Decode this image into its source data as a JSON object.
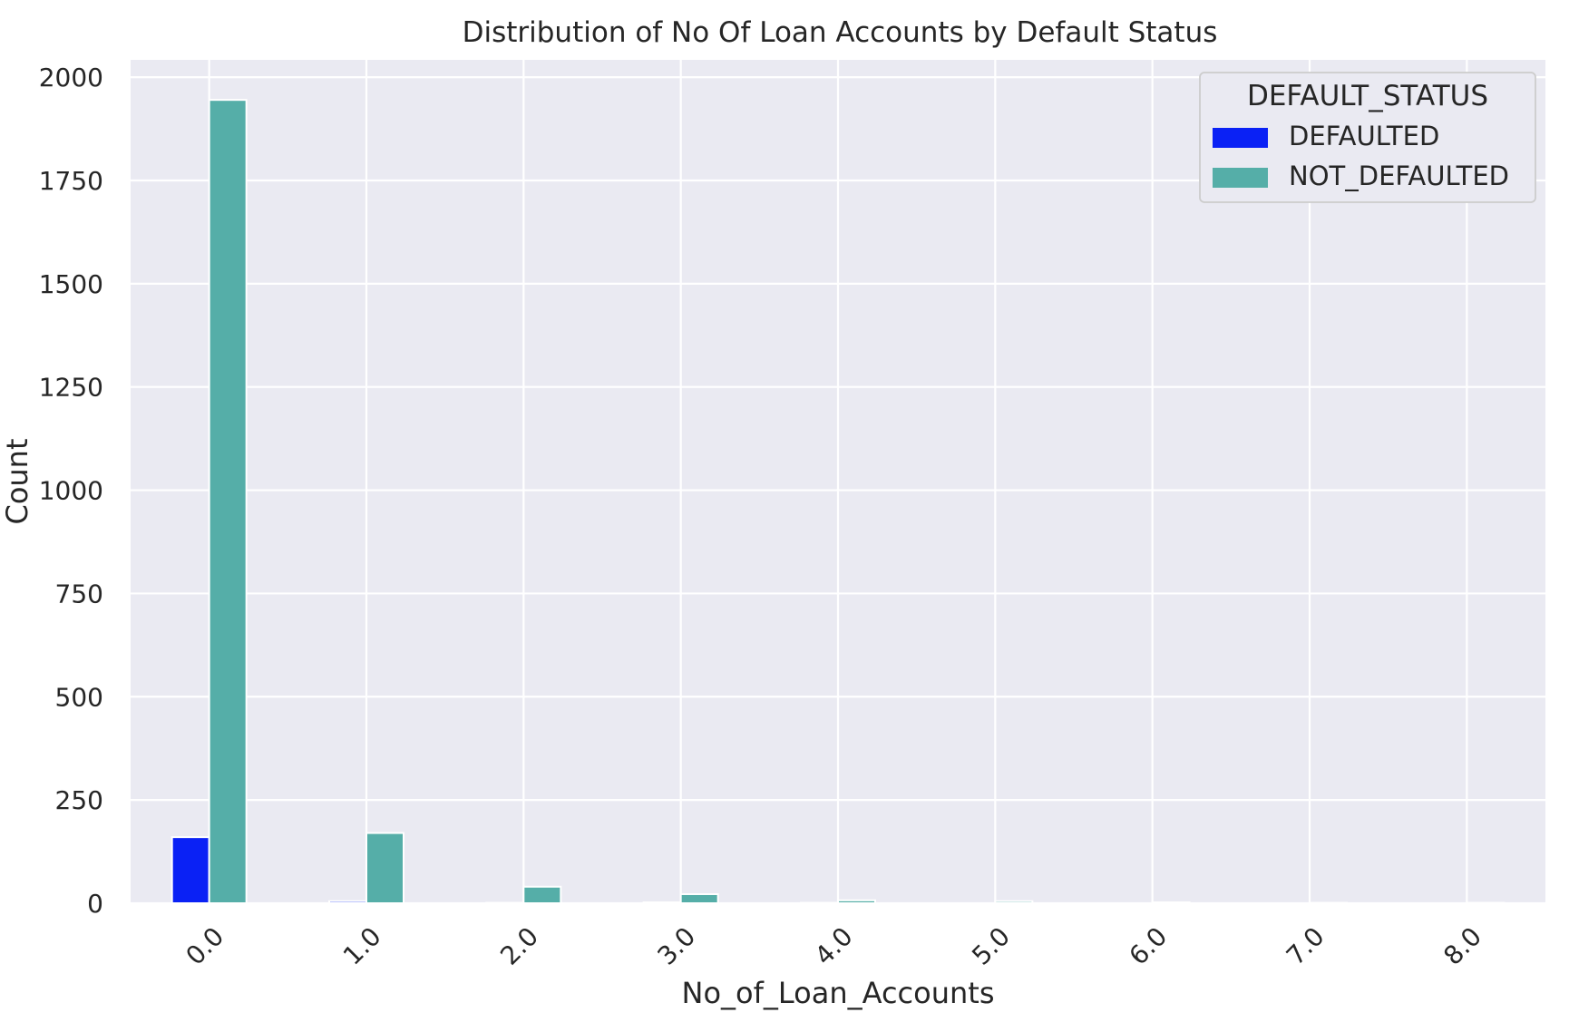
{
  "chart_data": {
    "type": "bar",
    "title": "Distribution of No Of Loan Accounts by Default Status",
    "xlabel": "No_of_Loan_Accounts",
    "ylabel": "Count",
    "categories": [
      "0.0",
      "1.0",
      "2.0",
      "3.0",
      "4.0",
      "5.0",
      "6.0",
      "7.0",
      "8.0"
    ],
    "series": [
      {
        "name": "DEFAULTED",
        "color": "#0a21f5",
        "values": [
          160,
          5,
          1,
          2,
          1,
          0,
          0,
          0,
          0
        ]
      },
      {
        "name": "NOT_DEFAULTED",
        "color": "#55aea8",
        "values": [
          1945,
          170,
          40,
          22,
          7,
          5,
          2,
          1,
          1
        ]
      }
    ],
    "yticks": [
      0,
      250,
      500,
      750,
      1000,
      1250,
      1500,
      1750,
      2000
    ],
    "ylim": [
      0,
      2042
    ],
    "legend": {
      "title": "DEFAULT_STATUS",
      "placement": "top-right"
    },
    "grid": true,
    "xtick_rotation": -45
  }
}
